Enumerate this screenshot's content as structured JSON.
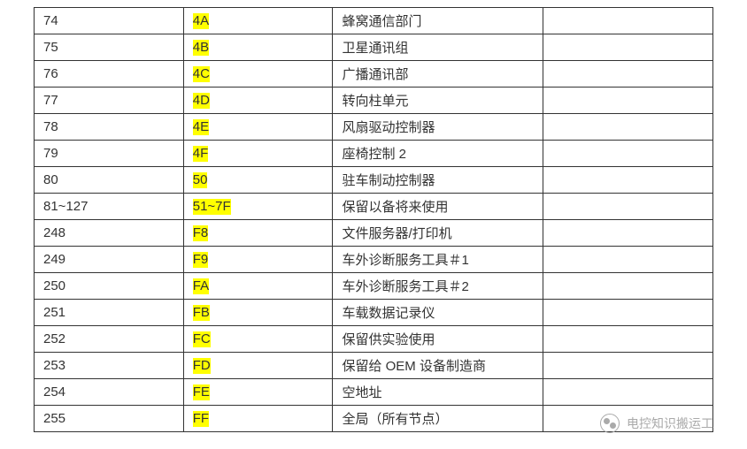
{
  "table": {
    "columns": [
      "col1",
      "col2",
      "col3",
      "col4"
    ],
    "col_widths": [
      "22%",
      "22%",
      "31%",
      "25%"
    ],
    "border_color": "#333333",
    "font_size": 15,
    "text_color": "#333333",
    "highlight_color": "#ffff00",
    "background_color": "#ffffff",
    "rows": [
      {
        "c1": "74",
        "c2": "4A",
        "c3": "蜂窝通信部门",
        "c4": "",
        "hl": true
      },
      {
        "c1": "75",
        "c2": "4B",
        "c3": "卫星通讯组",
        "c4": "",
        "hl": true
      },
      {
        "c1": "76",
        "c2": "4C",
        "c3": "广播通讯部",
        "c4": "",
        "hl": true
      },
      {
        "c1": "77",
        "c2": "4D",
        "c3": "转向柱单元",
        "c4": "",
        "hl": true
      },
      {
        "c1": "78",
        "c2": "4E",
        "c3": "风扇驱动控制器",
        "c4": "",
        "hl": true
      },
      {
        "c1": "79",
        "c2": "4F",
        "c3": "座椅控制 2",
        "c4": "",
        "hl": true
      },
      {
        "c1": "80",
        "c2": "50",
        "c3": "驻车制动控制器",
        "c4": "",
        "hl": true
      },
      {
        "c1": "81~127",
        "c2": "51~7F",
        "c3": "保留以备将来使用",
        "c4": "",
        "hl": true
      },
      {
        "c1": "248",
        "c2": "F8",
        "c3": "文件服务器/打印机",
        "c4": "",
        "hl": true
      },
      {
        "c1": "249",
        "c2": "F9",
        "c3": "车外诊断服务工具＃1",
        "c4": "",
        "hl": true
      },
      {
        "c1": "250",
        "c2": "FA",
        "c3": "车外诊断服务工具＃2",
        "c4": "",
        "hl": true
      },
      {
        "c1": "251",
        "c2": "FB",
        "c3": "车载数据记录仪",
        "c4": "",
        "hl": true
      },
      {
        "c1": "252",
        "c2": "FC",
        "c3": "保留供实验使用",
        "c4": "",
        "hl": true
      },
      {
        "c1": "253",
        "c2": "FD",
        "c3": "保留给 OEM 设备制造商",
        "c4": "",
        "hl": true
      },
      {
        "c1": "254",
        "c2": "FE",
        "c3": "空地址",
        "c4": "",
        "hl": true
      },
      {
        "c1": "255",
        "c2": "FF",
        "c3": "全局（所有节点）",
        "c4": "",
        "hl": true
      }
    ]
  },
  "watermark": {
    "text": "电控知识搬运工",
    "color": "#aaaaaa",
    "font_size": 14
  }
}
